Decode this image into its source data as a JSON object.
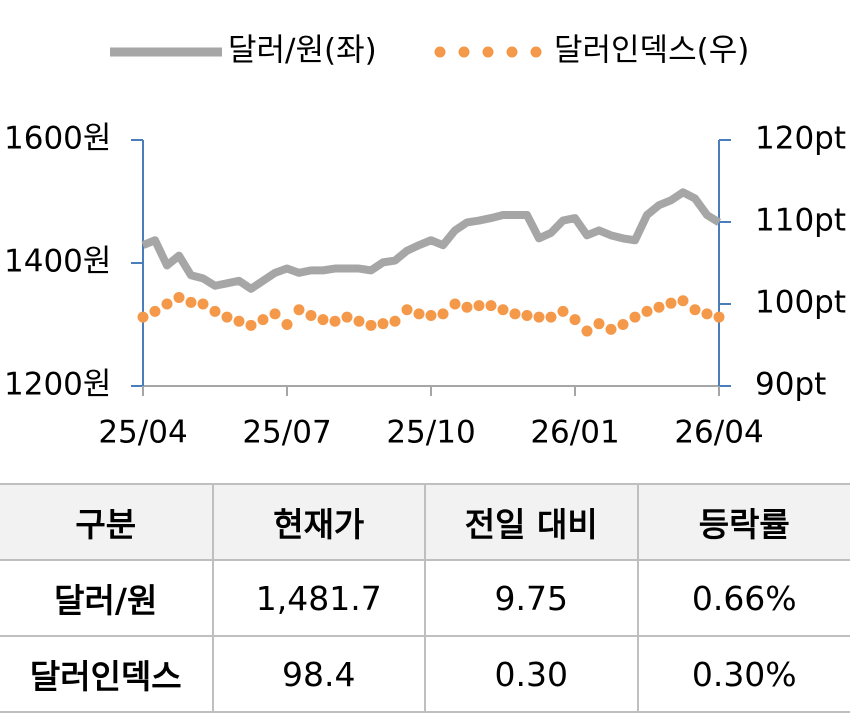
{
  "chart_data": {
    "type": "line",
    "categories": [
      "25/04",
      null,
      null,
      null,
      null,
      null,
      null,
      null,
      null,
      null,
      null,
      null,
      "25/07",
      null,
      null,
      null,
      null,
      null,
      null,
      null,
      null,
      null,
      null,
      null,
      "25/10",
      null,
      null,
      null,
      null,
      null,
      null,
      null,
      null,
      null,
      null,
      null,
      "26/01",
      null,
      null,
      null,
      null,
      null,
      null,
      null,
      null,
      null,
      null,
      null,
      "26/04"
    ],
    "series": [
      {
        "name": "달러/원(좌)",
        "color": "#a6a6a6",
        "style": "line",
        "values": [
          1429,
          1437,
          1396,
          1412,
          1380,
          1375,
          1363,
          1367,
          1371,
          1358,
          1371,
          1384,
          1391,
          1384,
          1388,
          1388,
          1391,
          1391,
          1391,
          1388,
          1401,
          1404,
          1420,
          1429,
          1437,
          1429,
          1453,
          1466,
          1469,
          1473,
          1478,
          1478,
          1478,
          1440,
          1449,
          1469,
          1473,
          1445,
          1453,
          1445,
          1440,
          1437,
          1478,
          1494,
          1502,
          1515,
          1505,
          1478,
          1466
        ]
      },
      {
        "name": "달러인덱스(우)",
        "color": "#f4984a",
        "style": "dots",
        "axis": "y2",
        "values": [
          98.4,
          99.1,
          100.0,
          100.8,
          100.2,
          100.0,
          99.1,
          98.4,
          97.9,
          97.4,
          98.1,
          98.8,
          97.5,
          99.3,
          98.6,
          98.1,
          97.9,
          98.4,
          97.9,
          97.4,
          97.6,
          97.9,
          99.3,
          98.8,
          98.6,
          98.8,
          100.0,
          99.6,
          99.8,
          99.8,
          99.3,
          98.8,
          98.6,
          98.4,
          98.4,
          99.1,
          98.1,
          96.7,
          97.6,
          96.9,
          97.5,
          98.4,
          99.1,
          99.6,
          100.1,
          100.4,
          99.3,
          98.8,
          98.4
        ]
      }
    ],
    "ylim": [
      1200,
      1600
    ],
    "yticks": [
      {
        "value": 1200,
        "label": "1200원"
      },
      {
        "value": 1400,
        "label": "1400원"
      },
      {
        "value": 1600,
        "label": "1600원"
      }
    ],
    "y2lim": [
      90,
      120
    ],
    "y2ticks": [
      {
        "value": 90,
        "label": "90pt"
      },
      {
        "value": 100,
        "label": "100pt"
      },
      {
        "value": 110,
        "label": "110pt"
      },
      {
        "value": 120,
        "label": "120pt"
      }
    ],
    "legend": "top",
    "grid": false
  },
  "table": {
    "header": [
      "구분",
      "현재가",
      "전일 대비",
      "등락률"
    ],
    "rows": [
      [
        "달러/원",
        "1,481.7",
        "9.75",
        "0.66%"
      ],
      [
        "달러인덱스",
        "98.4",
        "0.30",
        "0.30%"
      ]
    ]
  }
}
